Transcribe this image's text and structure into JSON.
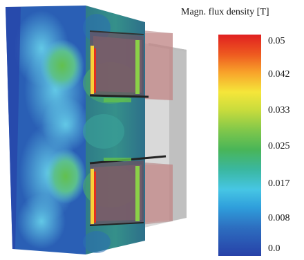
{
  "legend": {
    "title": "Magn. flux density [T]",
    "ticks": [
      "0.05",
      "0.042",
      "0.033",
      "0.025",
      "0.017",
      "0.008",
      "0.0"
    ]
  },
  "colors": {
    "field_low": "#2741a8",
    "field_mid": "#49b558",
    "field_high": "#e02020",
    "coil": "#b88080",
    "core": "#c8c8c8"
  }
}
